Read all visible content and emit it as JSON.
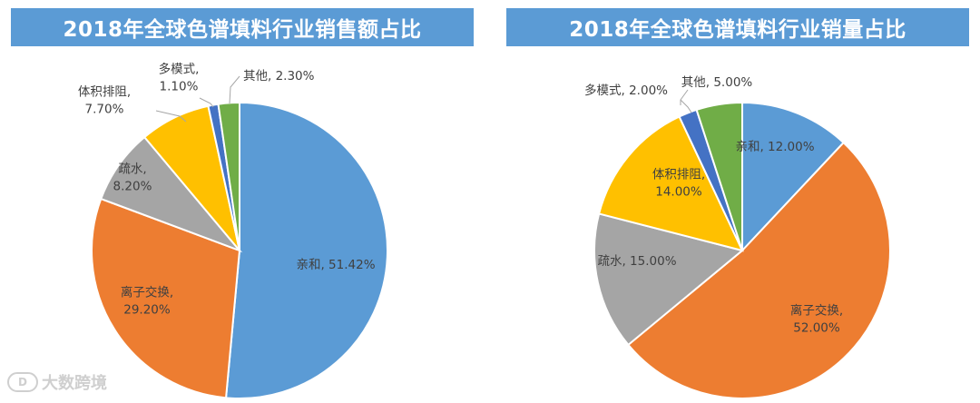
{
  "watermark": {
    "icon": "logo-icon",
    "text": "大数跨境"
  },
  "chart_data": [
    {
      "type": "pie",
      "title": "2018年全球色谱填料行业销售额占比",
      "slices": [
        {
          "name": "亲和",
          "value": 51.42,
          "label": "亲和, 51.42%",
          "color": "#5b9bd5"
        },
        {
          "name": "离子交换",
          "value": 29.2,
          "label": "离子交换,\n29.20%",
          "color": "#ed7d31"
        },
        {
          "name": "疏水",
          "value": 8.2,
          "label": "疏水,\n8.20%",
          "color": "#a5a5a5"
        },
        {
          "name": "体积排阻",
          "value": 7.7,
          "label": "体积排阻,\n7.70%",
          "color": "#ffc000"
        },
        {
          "name": "多模式",
          "value": 1.1,
          "label": "多模式,\n1.10%",
          "color": "#4472c4"
        },
        {
          "name": "其他",
          "value": 2.3,
          "label": "其他, 2.30%",
          "color": "#70ad47"
        }
      ]
    },
    {
      "type": "pie",
      "title": "2018年全球色谱填料行业销量占比",
      "slices": [
        {
          "name": "亲和",
          "value": 12.0,
          "label": "亲和, 12.00%",
          "color": "#5b9bd5"
        },
        {
          "name": "离子交换",
          "value": 52.0,
          "label": "离子交换,\n52.00%",
          "color": "#ed7d31"
        },
        {
          "name": "疏水",
          "value": 15.0,
          "label": "疏水, 15.00%",
          "color": "#a5a5a5"
        },
        {
          "name": "体积排阻",
          "value": 14.0,
          "label": "体积排阻,\n14.00%",
          "color": "#ffc000"
        },
        {
          "name": "多模式",
          "value": 2.0,
          "label": "多模式, 2.00%",
          "color": "#4472c4"
        },
        {
          "name": "其他",
          "value": 5.0,
          "label": "其他, 5.00%",
          "color": "#70ad47"
        }
      ]
    }
  ]
}
